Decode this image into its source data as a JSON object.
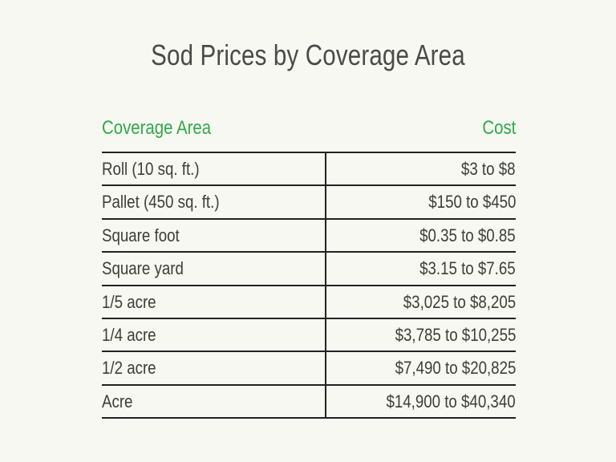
{
  "header": {
    "title": "Sod Prices by Coverage Area"
  },
  "table": {
    "columns": [
      "Coverage Area",
      "Cost"
    ],
    "rows": [
      [
        "Roll (10 sq. ft.)",
        "$3 to $8"
      ],
      [
        "Pallet (450 sq. ft.)",
        "$150 to $450"
      ],
      [
        "Square foot",
        "$0.35 to $0.85"
      ],
      [
        "Square yard",
        "$3.15 to $7.65"
      ],
      [
        "1/5 acre",
        "$3,025 to $8,205"
      ],
      [
        "1/4 acre",
        "$3,785 to $10,255"
      ],
      [
        "1/2 acre",
        "$7,490 to $20,825"
      ],
      [
        "Acre",
        "$14,900 to $40,340"
      ]
    ]
  }
}
